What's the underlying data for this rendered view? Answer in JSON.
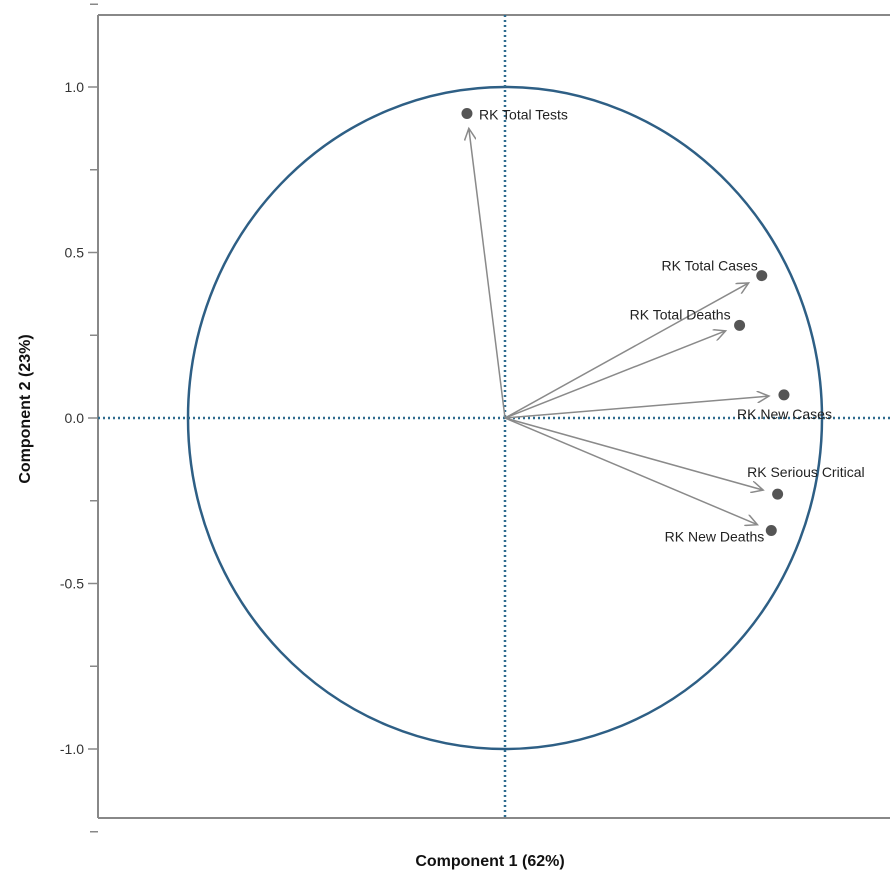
{
  "chart_data": {
    "type": "scatter",
    "subtype": "pca-correlation-circle",
    "title": "",
    "xlabel": "Component 1 (62%)",
    "ylabel": "Component 2 (23%)",
    "xlim": [
      -1.5,
      1.45
    ],
    "ylim": [
      -1.52,
      1.52
    ],
    "yticks": [
      {
        "value": 1.0,
        "label": "1.0"
      },
      {
        "value": 0.5,
        "label": "0.5"
      },
      {
        "value": 0.0,
        "label": "0.0"
      },
      {
        "value": -0.5,
        "label": "-0.5"
      },
      {
        "value": -1.0,
        "label": "-1.0"
      }
    ],
    "yticks_minor": [
      1.25,
      0.75,
      0.25,
      -0.25,
      -0.75,
      -1.25
    ],
    "circle_radius": 1.0,
    "reference_lines": {
      "x": 0,
      "y": 0,
      "style": "dotted"
    },
    "series": [
      {
        "points": [
          {
            "label": "RK Total Tests",
            "x": -0.12,
            "y": 0.92
          },
          {
            "label": "RK Total Cases",
            "x": 0.81,
            "y": 0.43
          },
          {
            "label": "RK Total Deaths",
            "x": 0.74,
            "y": 0.28
          },
          {
            "label": "RK New Cases",
            "x": 0.88,
            "y": 0.07
          },
          {
            "label": "RK Serious Critical",
            "x": 0.86,
            "y": -0.23
          },
          {
            "label": "RK New Deaths",
            "x": 0.84,
            "y": -0.34
          }
        ]
      }
    ],
    "colors": {
      "circle": "#2e5f85",
      "reference_line": "#2e6b8e",
      "arrow": "#8a8a8a",
      "point": "#555555",
      "axis": "#888888"
    },
    "grid": false,
    "legend": "none"
  }
}
